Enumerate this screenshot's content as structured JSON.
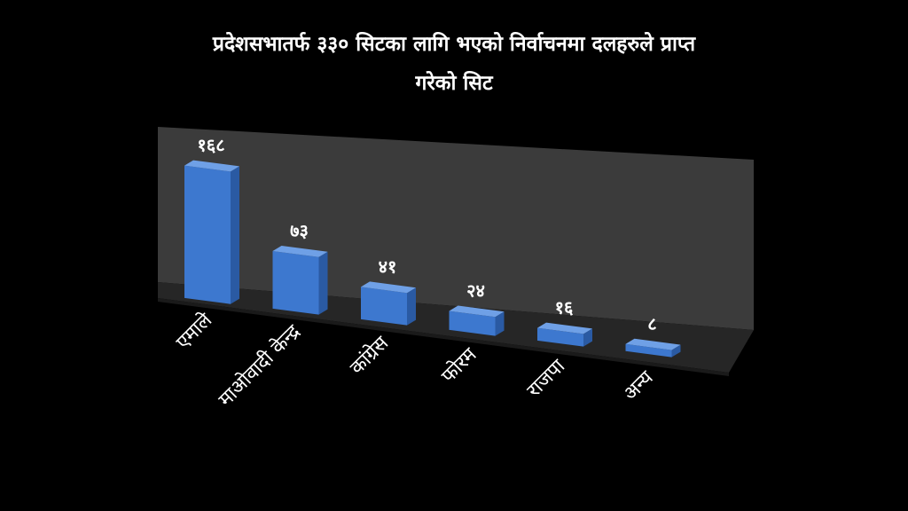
{
  "chart_data": {
    "type": "bar",
    "title_line1": "प्रदेशसभातर्फ ३३० सिटका लागि भएको निर्वाचनमा दलहरुले प्राप्त",
    "title_line2": "गरेको सिट",
    "categories": [
      "एमाले",
      "माओवादी केन्द्र",
      "कांग्रेस",
      "फोरम",
      "राजपा",
      "अन्य"
    ],
    "values": [
      168,
      73,
      41,
      24,
      16,
      8
    ],
    "value_labels": [
      "१६८",
      "७३",
      "४१",
      "२४",
      "१६",
      "८"
    ],
    "xlabel": "",
    "ylabel": "",
    "ylim": [
      0,
      180
    ],
    "grid": false,
    "legend": "none",
    "projection": "3d-perspective",
    "colors": {
      "background": "#000000",
      "bar_front": "#3d78cf",
      "bar_side": "#2a5aa3",
      "bar_top": "#6fa0e6",
      "wall": "#3b3b3b",
      "floor": "#262626",
      "text": "#ffffff"
    }
  }
}
